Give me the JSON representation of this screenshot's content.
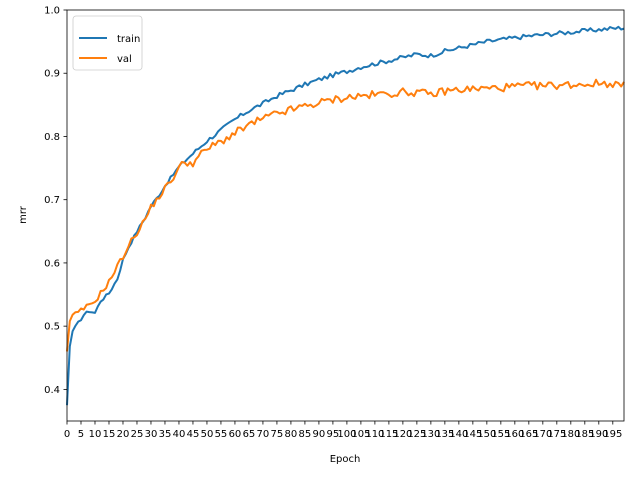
{
  "chart_data": {
    "type": "line",
    "title": "",
    "xlabel": "Epoch",
    "ylabel": "mrr",
    "xlim": [
      0,
      199
    ],
    "ylim": [
      0.35,
      1.0
    ],
    "x_ticks": [
      0,
      5,
      10,
      15,
      20,
      25,
      30,
      35,
      40,
      45,
      50,
      55,
      60,
      65,
      70,
      75,
      80,
      85,
      90,
      95,
      100,
      105,
      110,
      115,
      120,
      125,
      130,
      135,
      140,
      145,
      150,
      155,
      160,
      165,
      170,
      175,
      180,
      185,
      190,
      195
    ],
    "y_ticks": [
      0.4,
      0.5,
      0.6,
      0.7,
      0.8,
      0.9,
      1.0
    ],
    "grid": false,
    "legend_position": "top-left",
    "colors": {
      "train": "#1f77b4",
      "val": "#ff7f0e"
    },
    "series": [
      {
        "name": "train",
        "anchors": [
          [
            0,
            0.375
          ],
          [
            1,
            0.468
          ],
          [
            2,
            0.492
          ],
          [
            4,
            0.505
          ],
          [
            6,
            0.518
          ],
          [
            8,
            0.524
          ],
          [
            10,
            0.521
          ],
          [
            12,
            0.54
          ],
          [
            15,
            0.552
          ],
          [
            18,
            0.575
          ],
          [
            20,
            0.605
          ],
          [
            22,
            0.625
          ],
          [
            25,
            0.65
          ],
          [
            28,
            0.672
          ],
          [
            30,
            0.69
          ],
          [
            33,
            0.708
          ],
          [
            35,
            0.722
          ],
          [
            38,
            0.74
          ],
          [
            40,
            0.752
          ],
          [
            43,
            0.765
          ],
          [
            46,
            0.777
          ],
          [
            50,
            0.793
          ],
          [
            55,
            0.81
          ],
          [
            60,
            0.827
          ],
          [
            65,
            0.841
          ],
          [
            70,
            0.852
          ],
          [
            75,
            0.864
          ],
          [
            80,
            0.873
          ],
          [
            85,
            0.882
          ],
          [
            90,
            0.89
          ],
          [
            95,
            0.897
          ],
          [
            100,
            0.903
          ],
          [
            105,
            0.91
          ],
          [
            110,
            0.915
          ],
          [
            115,
            0.92
          ],
          [
            120,
            0.925
          ],
          [
            125,
            0.93
          ],
          [
            130,
            0.928
          ],
          [
            135,
            0.935
          ],
          [
            140,
            0.94
          ],
          [
            145,
            0.945
          ],
          [
            150,
            0.95
          ],
          [
            155,
            0.953
          ],
          [
            160,
            0.956
          ],
          [
            165,
            0.959
          ],
          [
            170,
            0.961
          ],
          [
            175,
            0.963
          ],
          [
            180,
            0.965
          ],
          [
            185,
            0.967
          ],
          [
            190,
            0.969
          ],
          [
            195,
            0.971
          ],
          [
            199,
            0.972
          ]
        ]
      },
      {
        "name": "val",
        "anchors": [
          [
            0,
            0.46
          ],
          [
            1,
            0.508
          ],
          [
            2,
            0.518
          ],
          [
            4,
            0.52
          ],
          [
            6,
            0.528
          ],
          [
            8,
            0.532
          ],
          [
            10,
            0.54
          ],
          [
            12,
            0.552
          ],
          [
            15,
            0.57
          ],
          [
            18,
            0.595
          ],
          [
            20,
            0.61
          ],
          [
            22,
            0.628
          ],
          [
            25,
            0.648
          ],
          [
            28,
            0.67
          ],
          [
            30,
            0.688
          ],
          [
            33,
            0.705
          ],
          [
            35,
            0.718
          ],
          [
            38,
            0.735
          ],
          [
            40,
            0.75
          ],
          [
            42,
            0.76
          ],
          [
            45,
            0.758
          ],
          [
            48,
            0.772
          ],
          [
            50,
            0.78
          ],
          [
            55,
            0.792
          ],
          [
            60,
            0.805
          ],
          [
            65,
            0.818
          ],
          [
            70,
            0.828
          ],
          [
            75,
            0.836
          ],
          [
            80,
            0.842
          ],
          [
            85,
            0.848
          ],
          [
            90,
            0.853
          ],
          [
            95,
            0.858
          ],
          [
            100,
            0.862
          ],
          [
            105,
            0.864
          ],
          [
            110,
            0.866
          ],
          [
            115,
            0.868
          ],
          [
            120,
            0.87
          ],
          [
            125,
            0.87
          ],
          [
            130,
            0.866
          ],
          [
            135,
            0.872
          ],
          [
            140,
            0.874
          ],
          [
            145,
            0.875
          ],
          [
            150,
            0.876
          ],
          [
            155,
            0.877
          ],
          [
            160,
            0.879
          ],
          [
            165,
            0.88
          ],
          [
            170,
            0.88
          ],
          [
            175,
            0.881
          ],
          [
            180,
            0.882
          ],
          [
            185,
            0.883
          ],
          [
            190,
            0.884
          ],
          [
            195,
            0.884
          ],
          [
            199,
            0.88
          ]
        ]
      }
    ]
  }
}
